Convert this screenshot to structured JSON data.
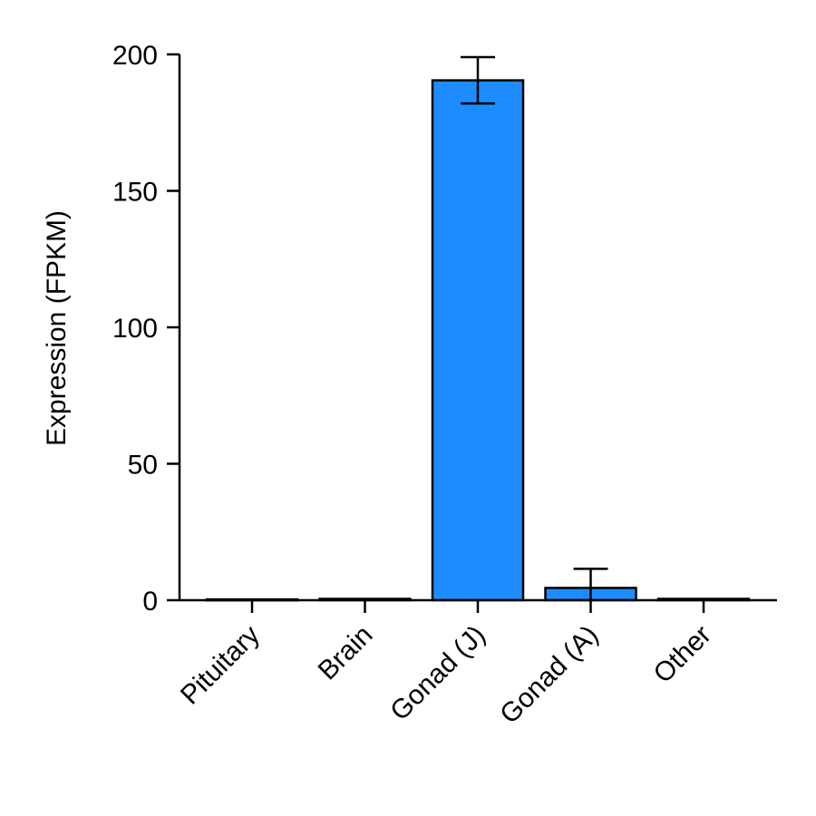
{
  "chart_data": {
    "type": "bar",
    "title": "",
    "xlabel": "",
    "ylabel": "Expression (FPKM)",
    "categories": [
      "Pituitary",
      "Brain",
      "Gonad (J)",
      "Gonad (A)",
      "Other"
    ],
    "values": [
      0.3,
      0.5,
      190.5,
      4.5,
      0.5
    ],
    "errors": [
      0,
      0,
      8.5,
      7.0,
      0
    ],
    "ylim": [
      0,
      200
    ],
    "yticks": [
      0,
      50,
      100,
      150,
      200
    ],
    "grid": false,
    "legend": "none",
    "bar_color": "#1e8cff",
    "edge_color": "#000000"
  }
}
